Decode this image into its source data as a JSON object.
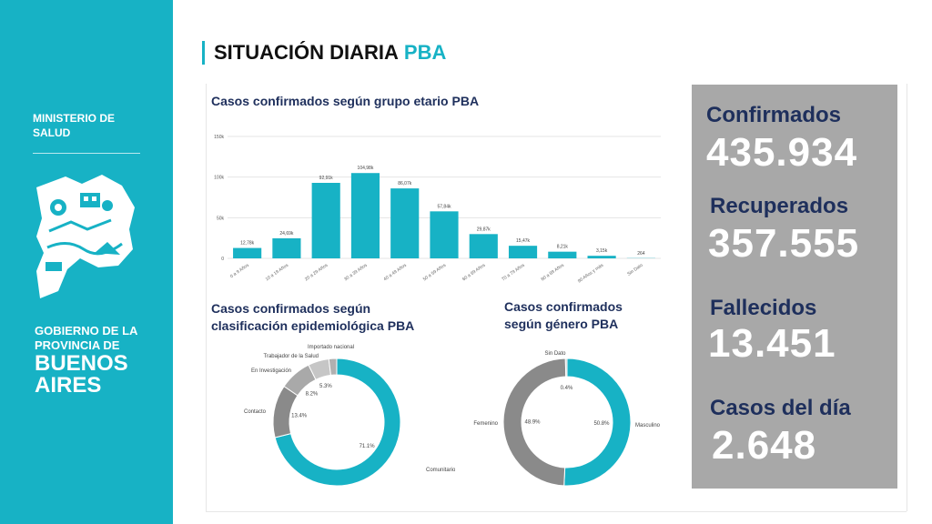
{
  "sidebar": {
    "ministry": "MINISTERIO DE SALUD",
    "gov_line1": "GOBIERNO DE LA",
    "gov_line2": "PROVINCIA DE",
    "gov_line3": "BUENOS",
    "gov_line4": "AIRES"
  },
  "header": {
    "title": "SITUACIÓN DIARIA",
    "title_accent": "PBA"
  },
  "bar_chart_title": "Casos confirmados según grupo etario PBA",
  "donut1_title_line1": "Casos confirmados según",
  "donut1_title_line2": "clasificación epidemiológica PBA",
  "donut2_title_line1": "Casos confirmados",
  "donut2_title_line2": "según género PBA",
  "stats": [
    {
      "label": "Confirmados",
      "value": "435.934"
    },
    {
      "label": "Recuperados",
      "value": "357.555"
    },
    {
      "label": "Fallecidos",
      "value": "13.451"
    },
    {
      "label": "Casos del día",
      "value": "2.648"
    }
  ],
  "colors": {
    "accent": "#17b2c5",
    "navy": "#1e2f5c",
    "panel": "#a8a8a8"
  },
  "chart_data": [
    {
      "type": "bar",
      "title": "Casos confirmados según grupo etario PBA",
      "categories": [
        "0 a 9 Años",
        "10 a 19 Años",
        "20 a 29 Años",
        "30 a 39 Años",
        "40 a 49 Años",
        "50 a 59 Años",
        "60 a 69 Años",
        "70 a 79 Años",
        "80 a 89 Años",
        "90 Años y más",
        "Sin Dato"
      ],
      "values": [
        12780,
        24690,
        92910,
        104980,
        86070,
        57840,
        29870,
        15470,
        8210,
        3150,
        264
      ],
      "value_labels": [
        "12,78k",
        "24,69k",
        "92,91k",
        "104,98k",
        "86,07k",
        "57,84k",
        "29,87k",
        "15,47k",
        "8,21k",
        "3,15k",
        "264"
      ],
      "y_ticks": [
        "0",
        "50k",
        "100k",
        "150k"
      ],
      "ylim": [
        0,
        150000
      ],
      "color": "#17b2c5"
    },
    {
      "type": "pie",
      "title": "Casos confirmados según clasificación epidemiológica PBA",
      "labels": [
        "Comunitario",
        "Contacto",
        "En Investigación",
        "Trabajador de la Salud",
        "Importado nacional"
      ],
      "values": [
        71.1,
        13.4,
        8.2,
        5.3,
        2.0
      ],
      "pct_labels": [
        "71.1%",
        "13.4%",
        "8.2%",
        "5.3%",
        ""
      ],
      "colors": [
        "#17b2c5",
        "#8a8a8a",
        "#a9a9a9",
        "#c6c6c6",
        "#b0b0b0"
      ]
    },
    {
      "type": "pie",
      "title": "Casos confirmados según género PBA",
      "labels": [
        "Masculino",
        "Femenino",
        "Sin Dato"
      ],
      "values": [
        50.8,
        48.9,
        0.4
      ],
      "pct_labels": [
        "50.8%",
        "48.9%",
        "0.4%"
      ],
      "colors": [
        "#17b2c5",
        "#8a8a8a",
        "#c6c6c6"
      ]
    }
  ]
}
